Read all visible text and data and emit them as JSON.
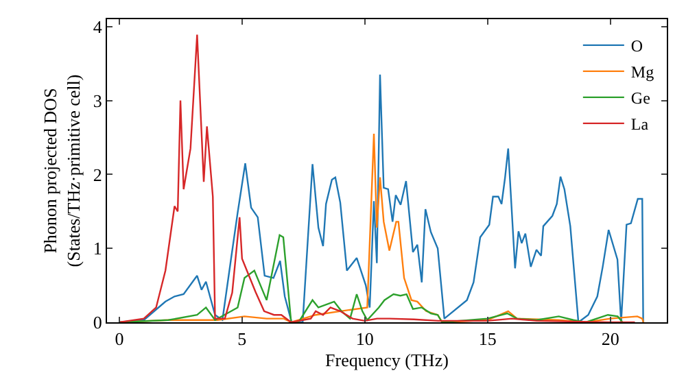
{
  "chart_data": {
    "type": "line",
    "xlabel": "Frequency (THz)",
    "ylabel": "Phonon projected DOS\n(States/THz·primitive cell)",
    "xlim": [
      -0.5,
      22.3
    ],
    "ylim": [
      0,
      4.1
    ],
    "xticks": [
      0,
      5,
      10,
      15,
      20
    ],
    "yticks": [
      0,
      1,
      2,
      3,
      4
    ],
    "grid": false,
    "legend": "top right",
    "marker": "none",
    "line_style": "solid",
    "series": [
      {
        "name": "O",
        "color": "#1f77b4",
        "x": [
          0,
          1,
          1.88,
          2.25,
          2.62,
          3.17,
          3.35,
          3.53,
          3.9,
          4.2,
          4.54,
          4.82,
          5.13,
          5.37,
          5.64,
          5.92,
          6.28,
          6.55,
          6.74,
          7.02,
          7.47,
          7.87,
          8.11,
          8.3,
          8.42,
          8.66,
          8.8,
          9.0,
          9.27,
          9.67,
          10.04,
          10.2,
          10.37,
          10.49,
          10.62,
          10.77,
          10.95,
          11.13,
          11.26,
          11.46,
          11.68,
          11.96,
          12.14,
          12.32,
          12.47,
          12.69,
          12.97,
          13.24,
          14.16,
          14.43,
          14.7,
          15.07,
          15.22,
          15.44,
          15.57,
          15.71,
          15.84,
          16.12,
          16.26,
          16.39,
          16.54,
          16.76,
          16.99,
          17.18,
          17.27,
          17.64,
          17.82,
          17.97,
          18.13,
          18.37,
          18.7,
          19.1,
          19.47,
          19.69,
          19.93,
          20.29,
          20.44,
          20.66,
          20.84,
          21.12,
          21.3,
          21.34
        ],
        "values": [
          0,
          0.03,
          0.28,
          0.35,
          0.38,
          0.63,
          0.44,
          0.55,
          0.1,
          0.03,
          0.83,
          1.48,
          2.15,
          1.55,
          1.42,
          0.63,
          0.6,
          0.83,
          0.35,
          0,
          0,
          2.14,
          1.28,
          1.03,
          1.6,
          1.93,
          1.96,
          1.62,
          0.7,
          0.87,
          0.5,
          0.2,
          1.64,
          0.8,
          3.35,
          1.82,
          1.8,
          1.36,
          1.72,
          1.59,
          1.91,
          0.95,
          1.05,
          0.54,
          1.53,
          1.22,
          1.0,
          0.05,
          0.3,
          0.54,
          1.15,
          1.32,
          1.7,
          1.7,
          1.6,
          1.95,
          2.35,
          0.73,
          1.23,
          1.07,
          1.2,
          0.75,
          0.98,
          0.9,
          1.3,
          1.44,
          1.6,
          1.97,
          1.8,
          1.3,
          0,
          0.1,
          0.35,
          0.75,
          1.25,
          0.85,
          0,
          1.32,
          1.34,
          1.67,
          1.67,
          0
        ]
      },
      {
        "name": "Mg",
        "color": "#ff7f0e",
        "x": [
          0,
          2,
          4,
          5.1,
          6,
          6.7,
          7,
          8,
          9,
          10.1,
          10.37,
          10.49,
          10.62,
          10.77,
          11.0,
          11.28,
          11.37,
          11.6,
          11.9,
          12.14,
          12.5,
          12.97,
          13.15,
          15,
          15.84,
          16.2,
          17.9,
          19,
          20,
          21.1,
          21.3,
          21.35
        ],
        "values": [
          0,
          0.03,
          0.03,
          0.08,
          0.05,
          0.05,
          0,
          0.1,
          0.15,
          0.2,
          2.55,
          1.28,
          1.96,
          1.36,
          0.97,
          1.36,
          1.36,
          0.6,
          0.3,
          0.28,
          0.15,
          0.1,
          0,
          0.03,
          0.15,
          0.05,
          0.03,
          0,
          0.05,
          0.08,
          0.05,
          0
        ]
      },
      {
        "name": "Ge",
        "color": "#2ca02c",
        "x": [
          0,
          2,
          3.17,
          3.53,
          3.9,
          4.82,
          5.1,
          5.5,
          6.0,
          6.53,
          6.68,
          7.0,
          7.3,
          7.87,
          8.11,
          8.75,
          9.05,
          9.4,
          9.67,
          9.9,
          10.1,
          10.57,
          10.8,
          11.17,
          11.45,
          11.7,
          11.96,
          12.32,
          12.69,
          12.97,
          13.15,
          15,
          15.8,
          16.2,
          17,
          17.9,
          18.5,
          19,
          19.9,
          20.3,
          20.5
        ],
        "values": [
          0,
          0.03,
          0.1,
          0.2,
          0.03,
          0.2,
          0.6,
          0.7,
          0.3,
          1.18,
          1.15,
          0,
          0,
          0.3,
          0.2,
          0.28,
          0.15,
          0.05,
          0.38,
          0.15,
          0.03,
          0.2,
          0.3,
          0.38,
          0.36,
          0.38,
          0.18,
          0.2,
          0.12,
          0.1,
          0,
          0.05,
          0.12,
          0.05,
          0.03,
          0.08,
          0.03,
          0,
          0.1,
          0.08,
          0
        ]
      },
      {
        "name": "La",
        "color": "#d62728",
        "x": [
          0,
          1,
          1.5,
          1.88,
          2.25,
          2.38,
          2.49,
          2.62,
          2.9,
          3.17,
          3.44,
          3.57,
          3.81,
          3.9,
          4.3,
          4.6,
          4.9,
          5.0,
          5.55,
          5.9,
          6.3,
          6.6,
          7.0,
          7.8,
          8.0,
          8.3,
          8.6,
          9.0,
          9.5,
          10.0,
          10.5,
          11,
          12,
          13,
          15,
          16,
          17,
          20,
          21
        ],
        "values": [
          0,
          0.05,
          0.2,
          0.7,
          1.57,
          1.5,
          3.0,
          1.8,
          2.35,
          3.89,
          1.9,
          2.65,
          1.7,
          0.05,
          0.05,
          0.4,
          1.42,
          0.86,
          0.41,
          0.15,
          0.1,
          0.1,
          0,
          0.05,
          0.15,
          0.1,
          0.2,
          0.15,
          0.05,
          0.02,
          0.05,
          0.05,
          0.04,
          0.02,
          0.02,
          0.05,
          0.02,
          0,
          0
        ]
      }
    ]
  }
}
